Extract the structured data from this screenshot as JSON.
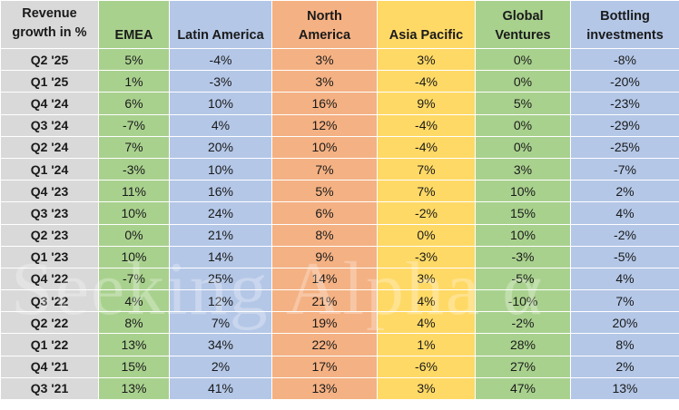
{
  "header": {
    "period": [
      "Revenue",
      "growth in %"
    ],
    "segments": [
      [
        "EMEA"
      ],
      [
        "Latin America"
      ],
      [
        "North",
        "America"
      ],
      [
        "Asia Pacific"
      ],
      [
        "Global",
        "Ventures"
      ],
      [
        "Bottling",
        "investments"
      ]
    ]
  },
  "rows": [
    {
      "period": "Q2 '25",
      "values": [
        "5%",
        "-4%",
        "3%",
        "3%",
        "0%",
        "-8%"
      ]
    },
    {
      "period": "Q1 '25",
      "values": [
        "1%",
        "-3%",
        "3%",
        "-4%",
        "0%",
        "-20%"
      ]
    },
    {
      "period": "Q4 '24",
      "values": [
        "6%",
        "10%",
        "16%",
        "9%",
        "5%",
        "-23%"
      ]
    },
    {
      "period": "Q3 '24",
      "values": [
        "-7%",
        "4%",
        "12%",
        "-4%",
        "0%",
        "-29%"
      ]
    },
    {
      "period": "Q2 '24",
      "values": [
        "7%",
        "20%",
        "10%",
        "-4%",
        "0%",
        "-25%"
      ]
    },
    {
      "period": "Q1 '24",
      "values": [
        "-3%",
        "10%",
        "7%",
        "7%",
        "3%",
        "-7%"
      ]
    },
    {
      "period": "Q4 '23",
      "values": [
        "11%",
        "16%",
        "5%",
        "7%",
        "10%",
        "2%"
      ]
    },
    {
      "period": "Q3 '23",
      "values": [
        "10%",
        "24%",
        "6%",
        "-2%",
        "15%",
        "4%"
      ]
    },
    {
      "period": "Q2 '23",
      "values": [
        "0%",
        "21%",
        "8%",
        "0%",
        "10%",
        "-2%"
      ]
    },
    {
      "period": "Q1 '23",
      "values": [
        "10%",
        "14%",
        "9%",
        "-3%",
        "-3%",
        "-5%"
      ]
    },
    {
      "period": "Q4 '22",
      "values": [
        "-7%",
        "25%",
        "14%",
        "3%",
        "-5%",
        "4%"
      ]
    },
    {
      "period": "Q3 '22",
      "values": [
        "4%",
        "12%",
        "21%",
        "4%",
        "-10%",
        "7%"
      ]
    },
    {
      "period": "Q2 '22",
      "values": [
        "8%",
        "7%",
        "19%",
        "4%",
        "-2%",
        "20%"
      ]
    },
    {
      "period": "Q1 '22",
      "values": [
        "13%",
        "34%",
        "22%",
        "1%",
        "28%",
        "8%"
      ]
    },
    {
      "period": "Q4 '21",
      "values": [
        "15%",
        "2%",
        "17%",
        "-6%",
        "27%",
        "2%"
      ]
    },
    {
      "period": "Q3 '21",
      "values": [
        "13%",
        "41%",
        "13%",
        "3%",
        "47%",
        "13%"
      ]
    }
  ],
  "watermark": "Seeking Alpha α",
  "colors": {
    "period": "#d9d9d9",
    "emea": "#a9d18e",
    "latin_america": "#b4c7e7",
    "north_america": "#f4b183",
    "asia_pacific": "#ffd966",
    "global_ventures": "#a9d18e",
    "bottling": "#b4c7e7"
  }
}
